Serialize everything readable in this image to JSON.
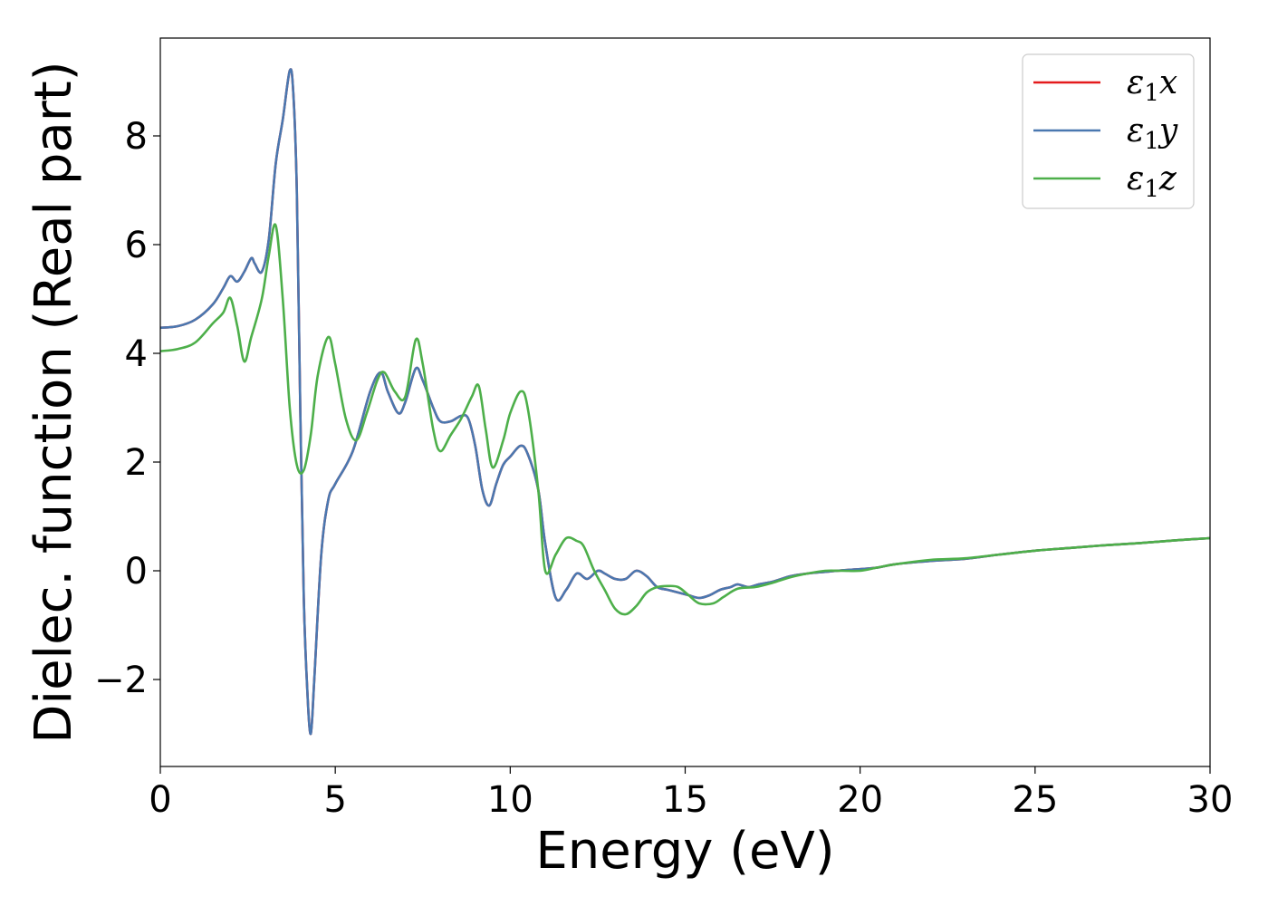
{
  "chart_data": {
    "type": "line",
    "title": "",
    "xlabel": "Energy (eV)",
    "ylabel": "Dielec. function (Real part)",
    "xlim": [
      0,
      30
    ],
    "ylim": [
      -3.6,
      9.8
    ],
    "xticks": [
      0,
      5,
      10,
      15,
      20,
      25,
      30
    ],
    "xtick_labels": [
      "0",
      "5",
      "10",
      "15",
      "20",
      "25",
      "30"
    ],
    "yticks": [
      -2,
      0,
      2,
      4,
      6,
      8
    ],
    "ytick_labels": [
      "−2",
      "0",
      "2",
      "4",
      "6",
      "8"
    ],
    "grid": false,
    "legend_position": "top-right",
    "series": [
      {
        "name": "ε1x",
        "legend_base": "ε",
        "legend_sub": "1",
        "legend_suffix": "x",
        "color": "#e41a1c",
        "x": [
          0,
          0.5,
          1,
          1.5,
          1.8,
          2.0,
          2.2,
          2.4,
          2.6,
          2.7,
          2.9,
          3.1,
          3.3,
          3.5,
          3.7,
          3.8,
          3.9,
          4.0,
          4.1,
          4.2,
          4.3,
          4.4,
          4.6,
          4.8,
          5.0,
          5.5,
          6.0,
          6.3,
          6.5,
          6.8,
          7.0,
          7.3,
          7.5,
          7.8,
          8.0,
          8.3,
          8.6,
          8.8,
          9.0,
          9.2,
          9.4,
          9.6,
          9.8,
          10.0,
          10.3,
          10.5,
          10.8,
          11.0,
          11.3,
          11.6,
          11.9,
          12.2,
          12.5,
          12.7,
          13.0,
          13.3,
          13.6,
          13.9,
          14.2,
          14.5,
          14.8,
          15.1,
          15.4,
          15.7,
          16.0,
          16.3,
          16.5,
          16.8,
          17.1,
          17.5,
          18.0,
          18.5,
          19.0,
          19.5,
          20.0,
          20.5,
          21.0,
          22.0,
          23.0,
          24.0,
          25.0,
          26.0,
          27.0,
          28.0,
          29.0,
          30.0
        ],
        "y": [
          4.47,
          4.5,
          4.62,
          4.9,
          5.2,
          5.42,
          5.32,
          5.5,
          5.75,
          5.65,
          5.5,
          6.1,
          7.5,
          8.3,
          9.2,
          8.8,
          7.0,
          3.0,
          -0.5,
          -2.2,
          -3.0,
          -2.0,
          0.3,
          1.3,
          1.6,
          2.2,
          3.3,
          3.65,
          3.3,
          2.9,
          3.1,
          3.72,
          3.5,
          3.0,
          2.75,
          2.75,
          2.85,
          2.8,
          2.3,
          1.5,
          1.2,
          1.6,
          1.95,
          2.1,
          2.3,
          2.15,
          1.5,
          0.5,
          -0.5,
          -0.35,
          -0.05,
          -0.15,
          0.0,
          -0.05,
          -0.15,
          -0.15,
          0.0,
          -0.1,
          -0.3,
          -0.35,
          -0.4,
          -0.45,
          -0.5,
          -0.45,
          -0.35,
          -0.3,
          -0.25,
          -0.3,
          -0.25,
          -0.2,
          -0.1,
          -0.05,
          -0.02,
          0.01,
          0.03,
          0.06,
          0.12,
          0.18,
          0.22,
          0.3,
          0.37,
          0.42,
          0.47,
          0.51,
          0.56,
          0.6
        ]
      },
      {
        "name": "ε1y",
        "legend_base": "ε",
        "legend_sub": "1",
        "legend_suffix": "y",
        "color": "#4a78b0",
        "x": [
          0,
          0.5,
          1,
          1.5,
          1.8,
          2.0,
          2.2,
          2.4,
          2.6,
          2.7,
          2.9,
          3.1,
          3.3,
          3.5,
          3.7,
          3.8,
          3.9,
          4.0,
          4.1,
          4.2,
          4.3,
          4.4,
          4.6,
          4.8,
          5.0,
          5.5,
          6.0,
          6.3,
          6.5,
          6.8,
          7.0,
          7.3,
          7.5,
          7.8,
          8.0,
          8.3,
          8.6,
          8.8,
          9.0,
          9.2,
          9.4,
          9.6,
          9.8,
          10.0,
          10.3,
          10.5,
          10.8,
          11.0,
          11.3,
          11.6,
          11.9,
          12.2,
          12.5,
          12.7,
          13.0,
          13.3,
          13.6,
          13.9,
          14.2,
          14.5,
          14.8,
          15.1,
          15.4,
          15.7,
          16.0,
          16.3,
          16.5,
          16.8,
          17.1,
          17.5,
          18.0,
          18.5,
          19.0,
          19.5,
          20.0,
          20.5,
          21.0,
          22.0,
          23.0,
          24.0,
          25.0,
          26.0,
          27.0,
          28.0,
          29.0,
          30.0
        ],
        "y": [
          4.47,
          4.5,
          4.62,
          4.9,
          5.2,
          5.42,
          5.32,
          5.5,
          5.75,
          5.65,
          5.5,
          6.1,
          7.5,
          8.3,
          9.2,
          8.8,
          7.0,
          3.0,
          -0.5,
          -2.2,
          -3.0,
          -2.0,
          0.3,
          1.3,
          1.6,
          2.2,
          3.3,
          3.65,
          3.3,
          2.9,
          3.1,
          3.72,
          3.5,
          3.0,
          2.75,
          2.75,
          2.85,
          2.8,
          2.3,
          1.5,
          1.2,
          1.6,
          1.95,
          2.1,
          2.3,
          2.15,
          1.5,
          0.5,
          -0.5,
          -0.35,
          -0.05,
          -0.15,
          0.0,
          -0.05,
          -0.15,
          -0.15,
          0.0,
          -0.1,
          -0.3,
          -0.35,
          -0.4,
          -0.45,
          -0.5,
          -0.45,
          -0.35,
          -0.3,
          -0.25,
          -0.3,
          -0.25,
          -0.2,
          -0.1,
          -0.05,
          -0.02,
          0.01,
          0.03,
          0.06,
          0.12,
          0.18,
          0.22,
          0.3,
          0.37,
          0.42,
          0.47,
          0.51,
          0.56,
          0.6
        ]
      },
      {
        "name": "ε1z",
        "legend_base": "ε",
        "legend_sub": "1",
        "legend_suffix": "z",
        "color": "#4daf4a",
        "x": [
          0,
          0.5,
          1,
          1.5,
          1.8,
          2.0,
          2.2,
          2.4,
          2.6,
          2.9,
          3.1,
          3.3,
          3.5,
          3.7,
          3.9,
          4.1,
          4.3,
          4.5,
          4.8,
          5.0,
          5.3,
          5.6,
          5.9,
          6.2,
          6.4,
          6.7,
          7.0,
          7.3,
          7.5,
          7.8,
          8.0,
          8.3,
          8.6,
          8.9,
          9.1,
          9.3,
          9.5,
          9.8,
          10.0,
          10.3,
          10.5,
          10.8,
          11.0,
          11.3,
          11.6,
          11.9,
          12.1,
          12.4,
          12.7,
          13.0,
          13.3,
          13.6,
          13.9,
          14.2,
          14.5,
          14.8,
          15.1,
          15.4,
          15.8,
          16.1,
          16.5,
          17.0,
          17.5,
          18.0,
          18.5,
          19.0,
          19.5,
          20.0,
          20.5,
          21.0,
          22.0,
          23.0,
          24.0,
          25.0,
          26.0,
          27.0,
          28.0,
          29.0,
          30.0
        ],
        "y": [
          4.04,
          4.08,
          4.2,
          4.55,
          4.75,
          5.02,
          4.5,
          3.85,
          4.3,
          5.0,
          5.8,
          6.35,
          5.0,
          3.0,
          1.95,
          1.85,
          2.5,
          3.6,
          4.3,
          3.8,
          2.8,
          2.4,
          2.9,
          3.5,
          3.65,
          3.3,
          3.2,
          4.25,
          3.8,
          2.6,
          2.2,
          2.5,
          2.8,
          3.2,
          3.4,
          2.6,
          1.9,
          2.4,
          2.9,
          3.3,
          3.0,
          1.5,
          0.0,
          0.3,
          0.6,
          0.55,
          0.45,
          0.0,
          -0.35,
          -0.7,
          -0.8,
          -0.65,
          -0.4,
          -0.3,
          -0.28,
          -0.3,
          -0.45,
          -0.6,
          -0.6,
          -0.48,
          -0.33,
          -0.3,
          -0.22,
          -0.12,
          -0.05,
          0.0,
          0.0,
          0.0,
          0.06,
          0.12,
          0.2,
          0.23,
          0.3,
          0.37,
          0.42,
          0.47,
          0.51,
          0.56,
          0.6
        ]
      }
    ]
  }
}
